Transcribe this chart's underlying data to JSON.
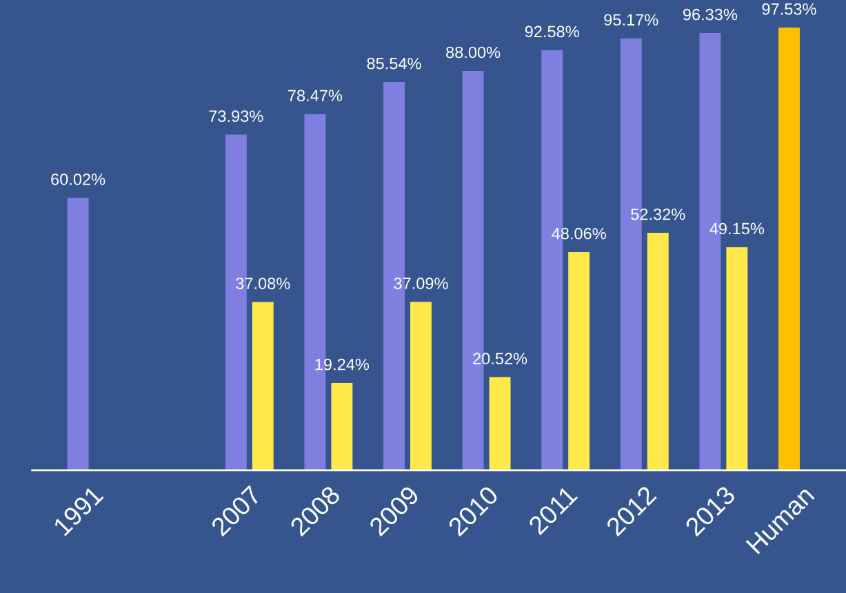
{
  "chart_data": {
    "type": "bar",
    "categories": [
      "1991",
      null,
      "2007",
      "2008",
      "2009",
      "2010",
      "2011",
      "2012",
      "2013",
      "Human"
    ],
    "series": [
      {
        "color": "#7f7fe0",
        "values": [
          60.02,
          null,
          73.93,
          78.47,
          85.54,
          88.0,
          92.58,
          95.17,
          96.33,
          null
        ],
        "value_labels": [
          "60.02%",
          null,
          "73.93%",
          "78.47%",
          "85.54%",
          "88.00%",
          "92.58%",
          "95.17%",
          "96.33%",
          null
        ]
      },
      {
        "color": "#ffe94a",
        "values": [
          null,
          null,
          37.08,
          19.24,
          37.09,
          20.52,
          48.06,
          52.32,
          49.15,
          null
        ],
        "value_labels": [
          null,
          null,
          "37.08%",
          "19.24%",
          "37.09%",
          "20.52%",
          "48.06%",
          "52.32%",
          "49.15%",
          null
        ]
      },
      {
        "color": "#ffc000",
        "values": [
          null,
          null,
          null,
          null,
          null,
          null,
          null,
          null,
          null,
          97.53
        ],
        "value_labels": [
          null,
          null,
          null,
          null,
          null,
          null,
          null,
          null,
          null,
          "97.53%"
        ]
      }
    ],
    "grid": false,
    "legend": false
  }
}
